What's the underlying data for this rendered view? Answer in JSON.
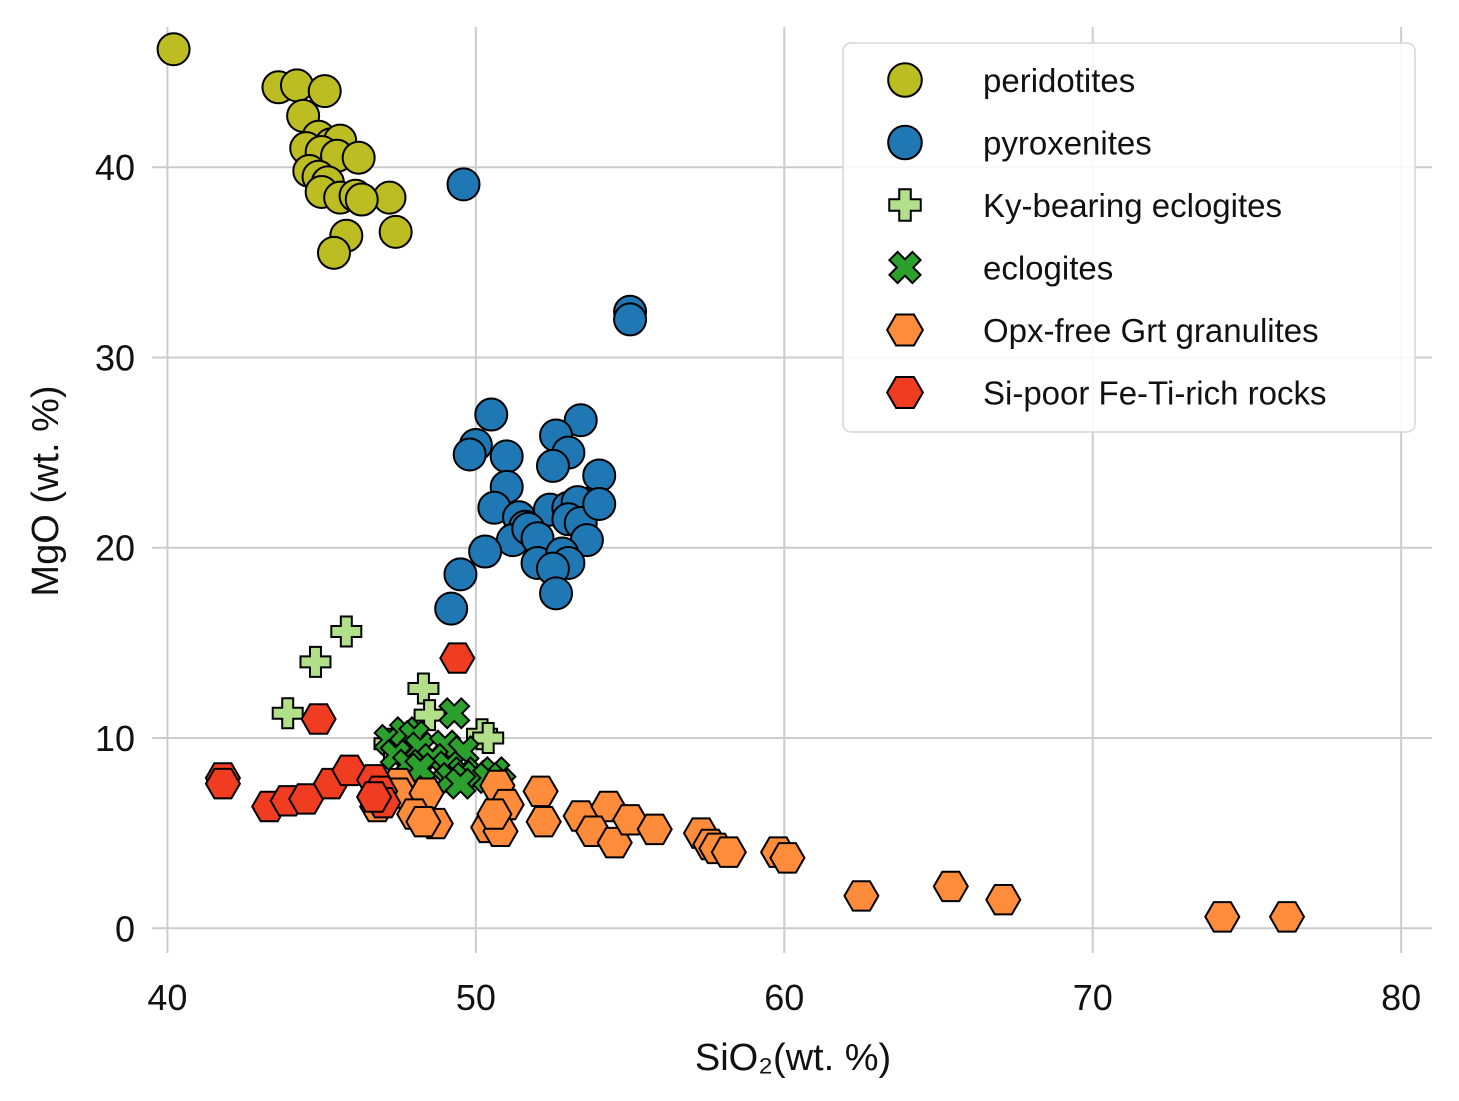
{
  "chart_data": {
    "type": "scatter",
    "xlabel": "SiO₂(wt. %)",
    "ylabel": "MgO (wt. %)",
    "xlim": [
      39.5,
      81
    ],
    "ylim": [
      -1.3,
      48
    ],
    "xticks": [
      40,
      50,
      60,
      70,
      80
    ],
    "yticks": [
      0,
      10,
      20,
      30,
      40
    ],
    "grid": true,
    "legend_position": "top-right",
    "series": [
      {
        "name": "peridotites",
        "marker": "circle",
        "color": "#bcbd22",
        "points": [
          [
            40.2,
            46.2
          ],
          [
            43.6,
            44.2
          ],
          [
            44.2,
            44.3
          ],
          [
            45.1,
            44.0
          ],
          [
            44.4,
            42.7
          ],
          [
            44.9,
            41.6
          ],
          [
            45.3,
            41.2
          ],
          [
            45.6,
            41.4
          ],
          [
            44.5,
            41.0
          ],
          [
            45.0,
            40.8
          ],
          [
            45.5,
            40.6
          ],
          [
            46.2,
            40.5
          ],
          [
            44.6,
            39.8
          ],
          [
            44.9,
            39.5
          ],
          [
            45.2,
            39.2
          ],
          [
            45.0,
            38.7
          ],
          [
            45.6,
            38.4
          ],
          [
            46.1,
            38.5
          ],
          [
            47.2,
            38.4
          ],
          [
            46.3,
            38.3
          ],
          [
            47.4,
            36.6
          ],
          [
            45.8,
            36.4
          ],
          [
            45.4,
            35.5
          ]
        ]
      },
      {
        "name": "pyroxenites",
        "marker": "circle",
        "color": "#1f77b4",
        "points": [
          [
            49.6,
            39.1
          ],
          [
            55.0,
            32.4
          ],
          [
            55.0,
            32.0
          ],
          [
            50.5,
            27.0
          ],
          [
            53.4,
            26.7
          ],
          [
            52.6,
            25.9
          ],
          [
            50.0,
            25.4
          ],
          [
            49.8,
            24.9
          ],
          [
            51.0,
            24.8
          ],
          [
            53.0,
            25.0
          ],
          [
            52.5,
            24.3
          ],
          [
            54.0,
            23.8
          ],
          [
            51.0,
            23.2
          ],
          [
            50.6,
            22.1
          ],
          [
            52.4,
            22.0
          ],
          [
            53.0,
            22.1
          ],
          [
            53.6,
            22.3
          ],
          [
            53.3,
            22.4
          ],
          [
            51.4,
            21.6
          ],
          [
            51.6,
            21.1
          ],
          [
            53.0,
            21.5
          ],
          [
            53.4,
            21.3
          ],
          [
            54.0,
            22.3
          ],
          [
            51.2,
            20.4
          ],
          [
            51.7,
            21.0
          ],
          [
            52.0,
            20.5
          ],
          [
            53.6,
            20.4
          ],
          [
            50.3,
            19.8
          ],
          [
            52.0,
            19.2
          ],
          [
            52.8,
            19.7
          ],
          [
            53.0,
            19.2
          ],
          [
            52.5,
            18.9
          ],
          [
            49.5,
            18.6
          ],
          [
            52.6,
            17.6
          ],
          [
            49.2,
            16.8
          ]
        ]
      },
      {
        "name": "Ky-bearing eclogites",
        "marker": "plus",
        "color": "#b2df8a",
        "points": [
          [
            45.8,
            15.6
          ],
          [
            44.8,
            14.0
          ],
          [
            48.3,
            12.6
          ],
          [
            43.9,
            11.3
          ],
          [
            48.5,
            11.2
          ],
          [
            50.2,
            10.2
          ],
          [
            50.4,
            10.0
          ],
          [
            47.2,
            9.7
          ],
          [
            48.0,
            9.3
          ]
        ]
      },
      {
        "name": "eclogites",
        "marker": "x",
        "color": "#2ca02c",
        "points": [
          [
            49.3,
            11.3
          ],
          [
            47.2,
            9.9
          ],
          [
            47.7,
            10.3
          ],
          [
            48.0,
            10.1
          ],
          [
            48.2,
            9.5
          ],
          [
            47.4,
            9.1
          ],
          [
            49.0,
            9.6
          ],
          [
            49.6,
            9.3
          ],
          [
            48.6,
            8.9
          ],
          [
            47.8,
            8.6
          ],
          [
            49.1,
            8.5
          ],
          [
            48.2,
            8.4
          ],
          [
            49.6,
            8.2
          ],
          [
            50.0,
            8.0
          ],
          [
            49.2,
            7.9
          ],
          [
            50.6,
            8.2
          ],
          [
            50.8,
            7.6
          ],
          [
            49.5,
            7.6
          ],
          [
            50.4,
            7.9
          ]
        ]
      },
      {
        "name": "Opx-free Grt granulites",
        "marker": "hexagon",
        "color": "#ff8c3a",
        "points": [
          [
            47.5,
            7.6
          ],
          [
            46.8,
            6.4
          ],
          [
            47.5,
            7.1
          ],
          [
            48.4,
            7.1
          ],
          [
            48.0,
            6.0
          ],
          [
            48.7,
            5.5
          ],
          [
            48.3,
            5.6
          ],
          [
            50.7,
            7.5
          ],
          [
            51.0,
            6.5
          ],
          [
            50.4,
            5.3
          ],
          [
            50.8,
            5.1
          ],
          [
            50.6,
            6.0
          ],
          [
            52.1,
            7.2
          ],
          [
            52.2,
            5.6
          ],
          [
            53.4,
            5.9
          ],
          [
            54.3,
            6.4
          ],
          [
            53.8,
            5.1
          ],
          [
            54.5,
            4.5
          ],
          [
            55.0,
            5.7
          ],
          [
            55.8,
            5.2
          ],
          [
            57.3,
            5.0
          ],
          [
            57.6,
            4.4
          ],
          [
            57.8,
            4.2
          ],
          [
            58.2,
            4.0
          ],
          [
            59.8,
            4.0
          ],
          [
            60.1,
            3.7
          ],
          [
            62.5,
            1.7
          ],
          [
            65.4,
            2.2
          ],
          [
            67.1,
            1.5
          ],
          [
            74.2,
            0.6
          ],
          [
            76.3,
            0.6
          ]
        ]
      },
      {
        "name": "Si-poor Fe-Ti-rich rocks",
        "marker": "hexagon",
        "color": "#f03c20",
        "points": [
          [
            49.4,
            14.2
          ],
          [
            44.9,
            11.0
          ],
          [
            41.8,
            7.9
          ],
          [
            41.8,
            7.6
          ],
          [
            43.3,
            6.4
          ],
          [
            43.9,
            6.7
          ],
          [
            44.5,
            6.8
          ],
          [
            45.3,
            7.6
          ],
          [
            45.9,
            8.3
          ],
          [
            46.7,
            7.8
          ],
          [
            46.9,
            7.2
          ],
          [
            47.0,
            6.6
          ],
          [
            46.7,
            6.9
          ]
        ]
      }
    ]
  }
}
